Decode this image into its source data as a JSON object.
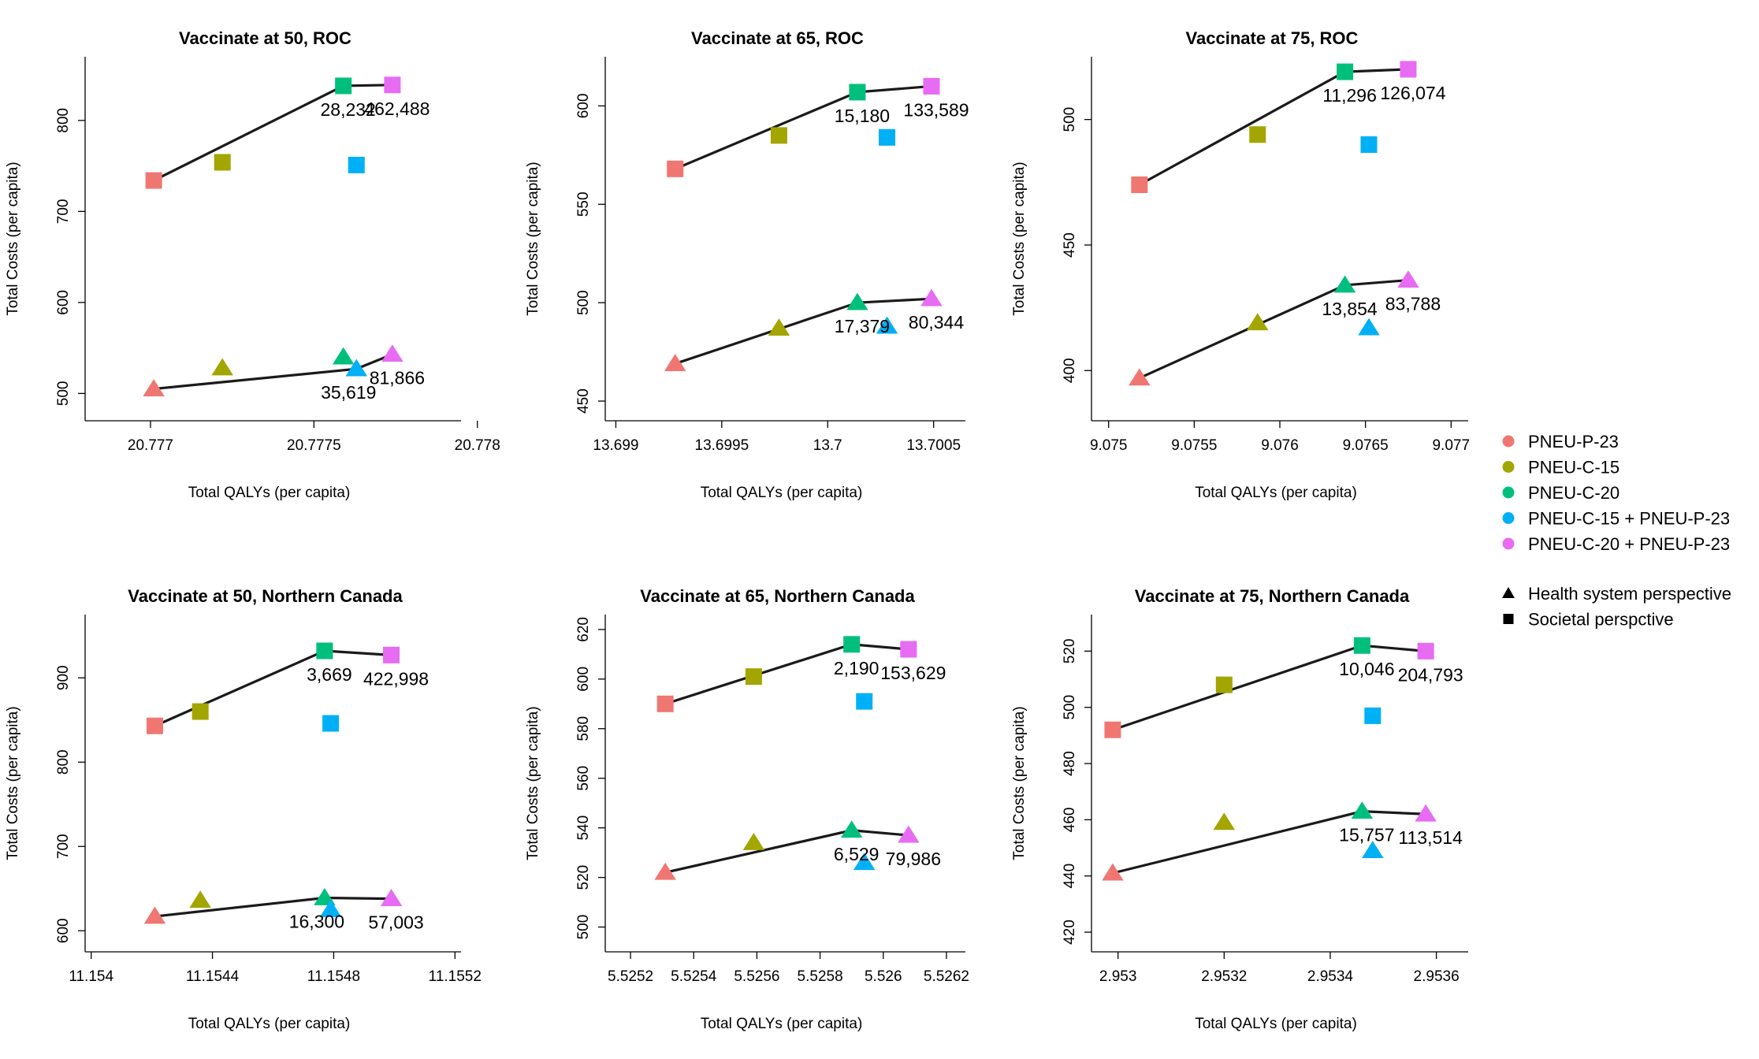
{
  "colors": {
    "PNEU-P-23": "#F07672",
    "PNEU-C-15": "#A3A500",
    "PNEU-C-20": "#00BF7D",
    "PNEU-C-15 + PNEU-P-23": "#00B0F6",
    "PNEU-C-20 + PNEU-P-23": "#E76BF3"
  },
  "legend": {
    "strategies": [
      "PNEU-P-23",
      "PNEU-C-15",
      "PNEU-C-20",
      "PNEU-C-15 + PNEU-P-23",
      "PNEU-C-20 + PNEU-P-23"
    ],
    "perspectives": [
      {
        "shape": "triangle",
        "label": "Health system perspective"
      },
      {
        "shape": "square",
        "label": "Societal perspctive"
      }
    ]
  },
  "chart_data": [
    {
      "type": "scatter",
      "title": "Vaccinate at 50, ROC",
      "xlabel": "Total QALYs (per capita)",
      "ylabel": "Total Costs (per capita)",
      "xlim": [
        20.7768,
        20.77795
      ],
      "ylim": [
        470,
        870
      ],
      "xticks": [
        20.777,
        20.7775,
        20.778
      ],
      "xtick_labels": [
        "20.777",
        "20.7775",
        "20.778"
      ],
      "yticks": [
        500,
        600,
        700,
        800
      ],
      "ytick_labels": [
        "500",
        "600",
        "700",
        "800"
      ],
      "series": [
        {
          "name": "Health system perspective",
          "shape": "triangle",
          "x": [
            20.77701,
            20.77722,
            20.77759,
            20.77763,
            20.77774
          ],
          "y": [
            505,
            528,
            540,
            527,
            543
          ],
          "frontier": [
            0,
            3,
            4
          ],
          "icer_labels": [
            {
              "text": "35,619",
              "at": 3,
              "pos": "below-left"
            },
            {
              "text": "81,866",
              "at": 4,
              "pos": "below"
            }
          ]
        },
        {
          "name": "Societal perspective",
          "shape": "square",
          "x": [
            20.77701,
            20.77722,
            20.77759,
            20.77763,
            20.77774
          ],
          "y": [
            734,
            754,
            838,
            751,
            839
          ],
          "frontier": [
            0,
            2,
            4
          ],
          "icer_labels": [
            {
              "text": "28,232",
              "at": 2,
              "pos": "below"
            },
            {
              "text": "462,488",
              "at": 4,
              "pos": "below"
            }
          ]
        }
      ]
    },
    {
      "type": "scatter",
      "title": "Vaccinate at 65, ROC",
      "xlabel": "Total QALYs (per capita)",
      "ylabel": "Total Costs (per capita)",
      "xlim": [
        13.69895,
        13.70065
      ],
      "ylim": [
        440,
        625
      ],
      "xticks": [
        13.699,
        13.6995,
        13.7,
        13.7005
      ],
      "xtick_labels": [
        "13.699",
        "13.6995",
        "13.7",
        "13.7005"
      ],
      "yticks": [
        450,
        500,
        550,
        600
      ],
      "ytick_labels": [
        "450",
        "500",
        "550",
        "600"
      ],
      "series": [
        {
          "name": "Health system perspective",
          "shape": "triangle",
          "x": [
            13.69928,
            13.69977,
            13.70014,
            13.70028,
            13.70049
          ],
          "y": [
            469,
            487,
            500,
            488,
            502
          ],
          "frontier": [
            0,
            2,
            4
          ],
          "icer_labels": [
            {
              "text": "17,379",
              "at": 2,
              "pos": "below"
            },
            {
              "text": "80,344",
              "at": 4,
              "pos": "below"
            }
          ]
        },
        {
          "name": "Societal perspective",
          "shape": "square",
          "x": [
            13.69928,
            13.69977,
            13.70014,
            13.70028,
            13.70049
          ],
          "y": [
            568,
            585,
            607,
            584,
            610
          ],
          "frontier": [
            0,
            2,
            4
          ],
          "icer_labels": [
            {
              "text": "15,180",
              "at": 2,
              "pos": "below"
            },
            {
              "text": "133,589",
              "at": 4,
              "pos": "below"
            }
          ]
        }
      ]
    },
    {
      "type": "scatter",
      "title": "Vaccinate at 75, ROC",
      "xlabel": "Total QALYs (per capita)",
      "ylabel": "Total Costs (per capita)",
      "xlim": [
        9.0749,
        9.0771
      ],
      "ylim": [
        380,
        525
      ],
      "xticks": [
        9.075,
        9.0755,
        9.076,
        9.0765,
        9.077
      ],
      "xtick_labels": [
        "9.075",
        "9.0755",
        "9.076",
        "9.0765",
        "9.077"
      ],
      "yticks": [
        400,
        450,
        500
      ],
      "ytick_labels": [
        "400",
        "450",
        "500"
      ],
      "series": [
        {
          "name": "Health system perspective",
          "shape": "triangle",
          "x": [
            9.07518,
            9.07587,
            9.07638,
            9.07652,
            9.07675
          ],
          "y": [
            397,
            419,
            434,
            417,
            436
          ],
          "frontier": [
            0,
            2,
            4
          ],
          "icer_labels": [
            {
              "text": "13,854",
              "at": 2,
              "pos": "below"
            },
            {
              "text": "83,788",
              "at": 4,
              "pos": "below"
            }
          ]
        },
        {
          "name": "Societal perspective",
          "shape": "square",
          "x": [
            9.07518,
            9.07587,
            9.07638,
            9.07652,
            9.07675
          ],
          "y": [
            474,
            494,
            519,
            490,
            520
          ],
          "frontier": [
            0,
            2,
            4
          ],
          "icer_labels": [
            {
              "text": "11,296",
              "at": 2,
              "pos": "below"
            },
            {
              "text": "126,074",
              "at": 4,
              "pos": "below"
            }
          ]
        }
      ]
    },
    {
      "type": "scatter",
      "title": "Vaccinate at 50, Northern Canada",
      "xlabel": "Total QALYs (per capita)",
      "ylabel": "Total Costs (per capita)",
      "xlim": [
        11.15398,
        11.15522
      ],
      "ylim": [
        575,
        975
      ],
      "xticks": [
        11.154,
        11.1544,
        11.1548,
        11.1552
      ],
      "xtick_labels": [
        "11.154",
        "11.1544",
        "11.1548",
        "11.1552"
      ],
      "yticks": [
        600,
        700,
        800,
        900
      ],
      "ytick_labels": [
        "600",
        "700",
        "800",
        "900"
      ],
      "series": [
        {
          "name": "Health system perspective",
          "shape": "triangle",
          "x": [
            11.15421,
            11.15436,
            11.15477,
            11.15479,
            11.15499
          ],
          "y": [
            617,
            636,
            639,
            625,
            638
          ],
          "frontier": [
            0,
            2,
            4
          ],
          "icer_labels": [
            {
              "text": "16,300",
              "at": 2,
              "pos": "below-left"
            },
            {
              "text": "57,003",
              "at": 4,
              "pos": "below"
            }
          ]
        },
        {
          "name": "Societal perspective",
          "shape": "square",
          "x": [
            11.15421,
            11.15436,
            11.15477,
            11.15479,
            11.15499
          ],
          "y": [
            843,
            860,
            932,
            846,
            927
          ],
          "frontier": [
            0,
            2,
            4
          ],
          "icer_labels": [
            {
              "text": "3,669",
              "at": 2,
              "pos": "below"
            },
            {
              "text": "422,998",
              "at": 4,
              "pos": "below"
            }
          ]
        }
      ]
    },
    {
      "type": "scatter",
      "title": "Vaccinate at 65, Northern Canada",
      "xlabel": "Total QALYs (per capita)",
      "ylabel": "Total Costs (per capita)",
      "xlim": [
        5.52512,
        5.52626
      ],
      "ylim": [
        490,
        626
      ],
      "xticks": [
        5.5252,
        5.5254,
        5.5256,
        5.5258,
        5.526,
        5.5262
      ],
      "xtick_labels": [
        "5.5252",
        "5.5254",
        "5.5256",
        "5.5258",
        "5.526",
        "5.5262"
      ],
      "yticks": [
        500,
        520,
        540,
        560,
        580,
        600,
        620
      ],
      "ytick_labels": [
        "500",
        "520",
        "540",
        "560",
        "580",
        "600",
        "620"
      ],
      "series": [
        {
          "name": "Health system perspective",
          "shape": "triangle",
          "x": [
            5.52531,
            5.52559,
            5.5259,
            5.52594,
            5.52608
          ],
          "y": [
            522,
            534,
            539,
            526,
            537
          ],
          "frontier": [
            0,
            2,
            4
          ],
          "icer_labels": [
            {
              "text": "6,529",
              "at": 2,
              "pos": "below"
            },
            {
              "text": "79,986",
              "at": 4,
              "pos": "below"
            }
          ]
        },
        {
          "name": "Societal perspective",
          "shape": "square",
          "x": [
            5.52531,
            5.52559,
            5.5259,
            5.52594,
            5.52608
          ],
          "y": [
            590,
            601,
            614,
            591,
            612
          ],
          "frontier": [
            0,
            2,
            4
          ],
          "icer_labels": [
            {
              "text": "2,190",
              "at": 2,
              "pos": "below"
            },
            {
              "text": "153,629",
              "at": 4,
              "pos": "below"
            }
          ]
        }
      ]
    },
    {
      "type": "scatter",
      "title": "Vaccinate at 75, Northern Canada",
      "xlabel": "Total QALYs (per capita)",
      "ylabel": "Total Costs (per capita)",
      "xlim": [
        2.95295,
        2.95366
      ],
      "ylim": [
        413,
        533
      ],
      "xticks": [
        2.953,
        2.9532,
        2.9534,
        2.9536
      ],
      "xtick_labels": [
        "2.953",
        "2.9532",
        "2.9534",
        "2.9536"
      ],
      "yticks": [
        420,
        440,
        460,
        480,
        500,
        520
      ],
      "ytick_labels": [
        "420",
        "440",
        "460",
        "480",
        "500",
        "520"
      ],
      "series": [
        {
          "name": "Health system perspective",
          "shape": "triangle",
          "x": [
            2.95299,
            2.9532,
            2.95346,
            2.95348,
            2.95358
          ],
          "y": [
            441,
            459,
            463,
            449,
            462
          ],
          "frontier": [
            0,
            2,
            4
          ],
          "icer_labels": [
            {
              "text": "15,757",
              "at": 2,
              "pos": "below"
            },
            {
              "text": "113,514",
              "at": 4,
              "pos": "below"
            }
          ]
        },
        {
          "name": "Societal perspective",
          "shape": "square",
          "x": [
            2.95299,
            2.9532,
            2.95346,
            2.95348,
            2.95358
          ],
          "y": [
            492,
            508,
            522,
            497,
            520
          ],
          "frontier": [
            0,
            2,
            4
          ],
          "icer_labels": [
            {
              "text": "10,046",
              "at": 2,
              "pos": "below"
            },
            {
              "text": "204,793",
              "at": 4,
              "pos": "below"
            }
          ]
        }
      ]
    }
  ]
}
